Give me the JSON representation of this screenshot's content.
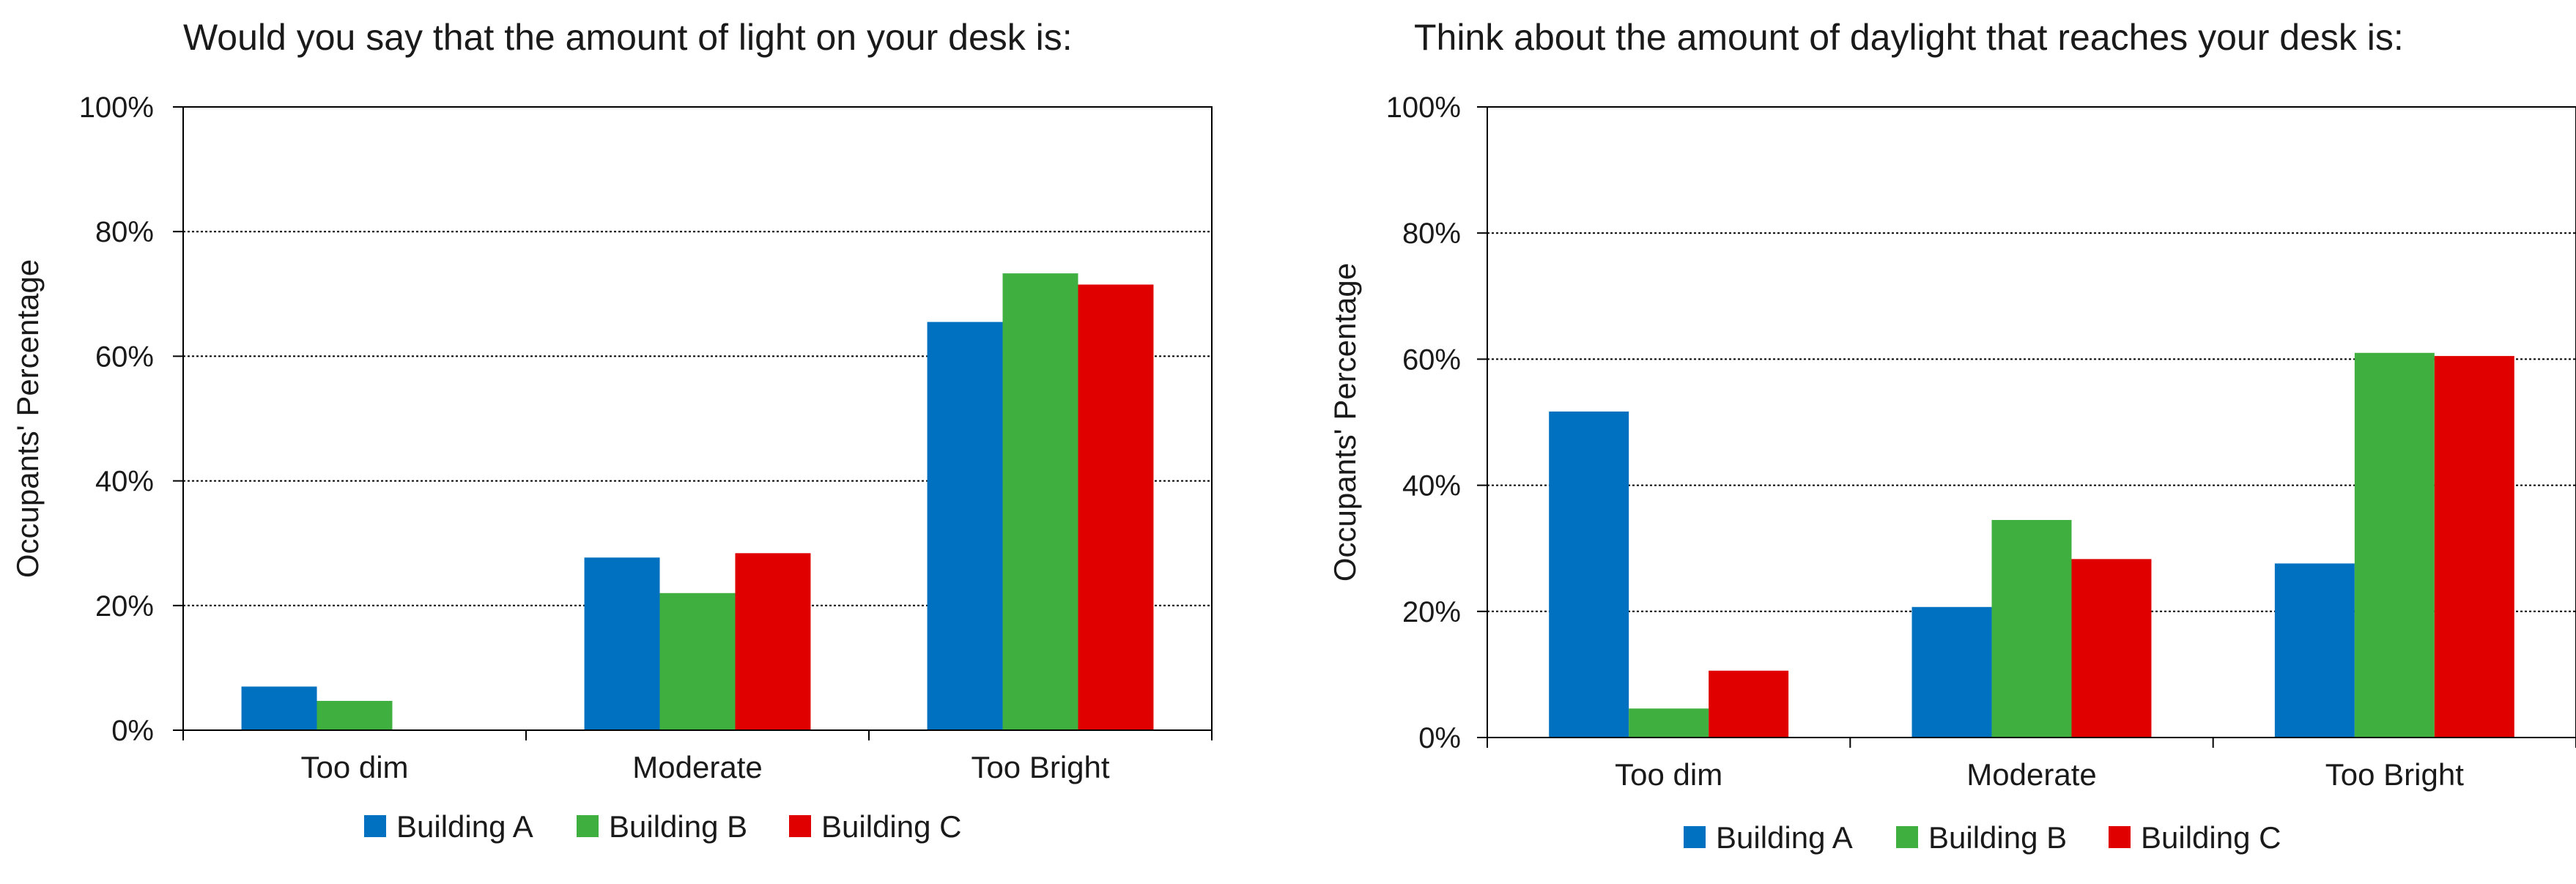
{
  "chart_data": [
    {
      "type": "bar",
      "title": "Would you say that the amount of light on your desk is:",
      "xlabel": "",
      "ylabel": "Occupants' Percentage",
      "ylim": [
        0,
        100
      ],
      "yticks": [
        "0%",
        "20%",
        "40%",
        "60%",
        "80%",
        "100%"
      ],
      "categories": [
        "Too dim",
        "Moderate",
        "Too Bright"
      ],
      "series": [
        {
          "name": "Building A",
          "color": "#0070C0",
          "values": [
            7,
            27.7,
            65.5
          ]
        },
        {
          "name": "Building B",
          "color": "#3FAF3F",
          "values": [
            4.7,
            22,
            73.3
          ]
        },
        {
          "name": "Building C",
          "color": "#E00000",
          "values": [
            0,
            28.4,
            71.5
          ]
        }
      ],
      "grid": true,
      "legend": "bottom"
    },
    {
      "type": "bar",
      "title": "Think about the amount of daylight that reaches your desk is:",
      "xlabel": "",
      "ylabel": "Occupants' Percentage",
      "ylim": [
        0,
        100
      ],
      "yticks": [
        "0%",
        "20%",
        "40%",
        "60%",
        "80%",
        "100%"
      ],
      "categories": [
        "Too dim",
        "Moderate",
        "Too Bright"
      ],
      "series": [
        {
          "name": "Building A",
          "color": "#0070C0",
          "values": [
            51.7,
            20.7,
            27.6
          ]
        },
        {
          "name": "Building B",
          "color": "#3FAF3F",
          "values": [
            4.6,
            34.5,
            61
          ]
        },
        {
          "name": "Building C",
          "color": "#E00000",
          "values": [
            10.6,
            28.3,
            60.5
          ]
        }
      ],
      "grid": true,
      "legend": "bottom"
    }
  ]
}
